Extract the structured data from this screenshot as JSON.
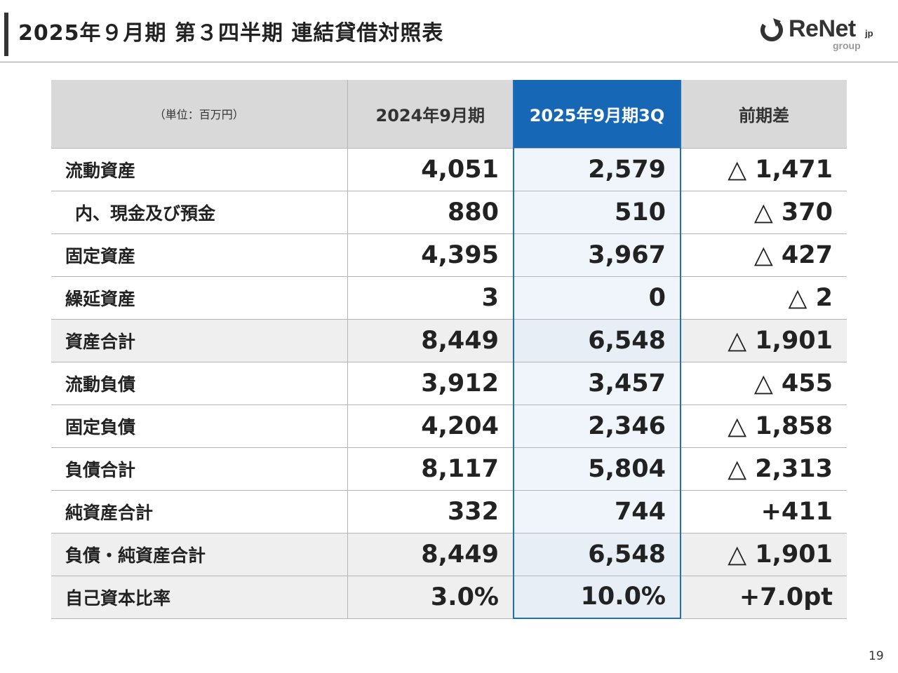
{
  "header": {
    "title": "2025年９月期 第３四半期 連結貸借対照表"
  },
  "logo": {
    "name": "ReNet",
    "suffix": "jp",
    "group": "group",
    "accent": "#333333"
  },
  "table": {
    "headers": [
      "（単位：百万円）",
      "2024年9月期",
      "2025年9月期3Q",
      "前期差"
    ],
    "highlight_color": "#1667b5",
    "rows": [
      {
        "label": "流動資産",
        "fy2024": "4,051",
        "q3_2025": "2,579",
        "diff": "△ 1,471"
      },
      {
        "label": "内、現金及び預金",
        "fy2024": "880",
        "q3_2025": "510",
        "diff": "△ 370"
      },
      {
        "label": "固定資産",
        "fy2024": "4,395",
        "q3_2025": "3,967",
        "diff": "△ 427"
      },
      {
        "label": "繰延資産",
        "fy2024": "3",
        "q3_2025": "0",
        "diff": "△ 2"
      },
      {
        "label": "資産合計",
        "fy2024": "8,449",
        "q3_2025": "6,548",
        "diff": "△ 1,901"
      },
      {
        "label": "流動負債",
        "fy2024": "3,912",
        "q3_2025": "3,457",
        "diff": "△ 455"
      },
      {
        "label": "固定負債",
        "fy2024": "4,204",
        "q3_2025": "2,346",
        "diff": "△ 1,858"
      },
      {
        "label": "負債合計",
        "fy2024": "8,117",
        "q3_2025": "5,804",
        "diff": "△ 2,313"
      },
      {
        "label": "純資産合計",
        "fy2024": "332",
        "q3_2025": "744",
        "diff": "+411"
      },
      {
        "label": "負債・純資産合計",
        "fy2024": "8,449",
        "q3_2025": "6,548",
        "diff": "△ 1,901"
      },
      {
        "label": "自己資本比率",
        "fy2024": "3.0%",
        "q3_2025": "10.0%",
        "diff": "+7.0pt"
      }
    ]
  },
  "footer": {
    "page_number": "19"
  }
}
